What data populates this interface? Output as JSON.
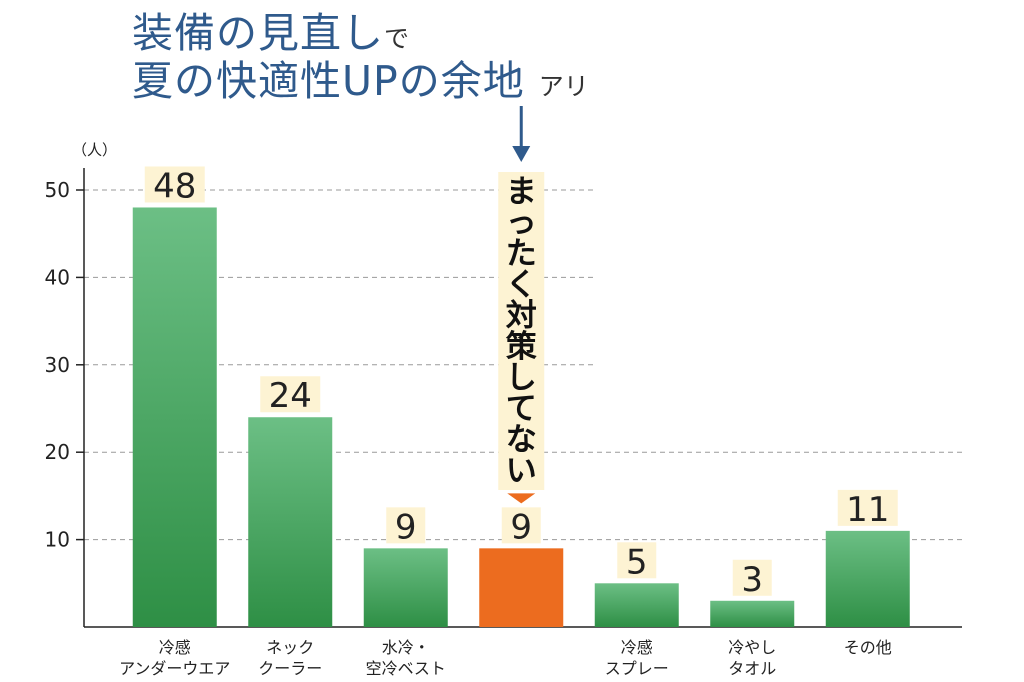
{
  "title": {
    "line1_main": "装備の見直し",
    "line1_small": "で",
    "line2_main": "夏の快適性UPの余地",
    "line2_small": "アリ"
  },
  "chart_data": {
    "type": "bar",
    "unit_label": "（人）",
    "categories": [
      [
        "冷感",
        "アンダーウエア"
      ],
      [
        "ネック",
        "クーラー"
      ],
      [
        "水冷・",
        "空冷ベスト"
      ],
      [
        ""
      ],
      [
        "冷感",
        "スプレー"
      ],
      [
        "冷やし",
        "タオル"
      ],
      [
        "その他"
      ]
    ],
    "values": [
      48,
      24,
      9,
      9,
      5,
      3,
      11
    ],
    "highlight_index": 3,
    "callout": "まったく対策してない",
    "y_ticks": [
      10,
      20,
      30,
      40,
      50
    ],
    "ylim": [
      0,
      50
    ],
    "grid": true,
    "colors": {
      "bar_top": "#6cbf85",
      "bar_bottom": "#2e8f45",
      "highlight": "#ec6c1f",
      "label_bg": "#fdf3d3",
      "grid": "#9a9a9a",
      "title": "#2f5a8c",
      "arrow_blue": "#2f5a8c"
    }
  }
}
